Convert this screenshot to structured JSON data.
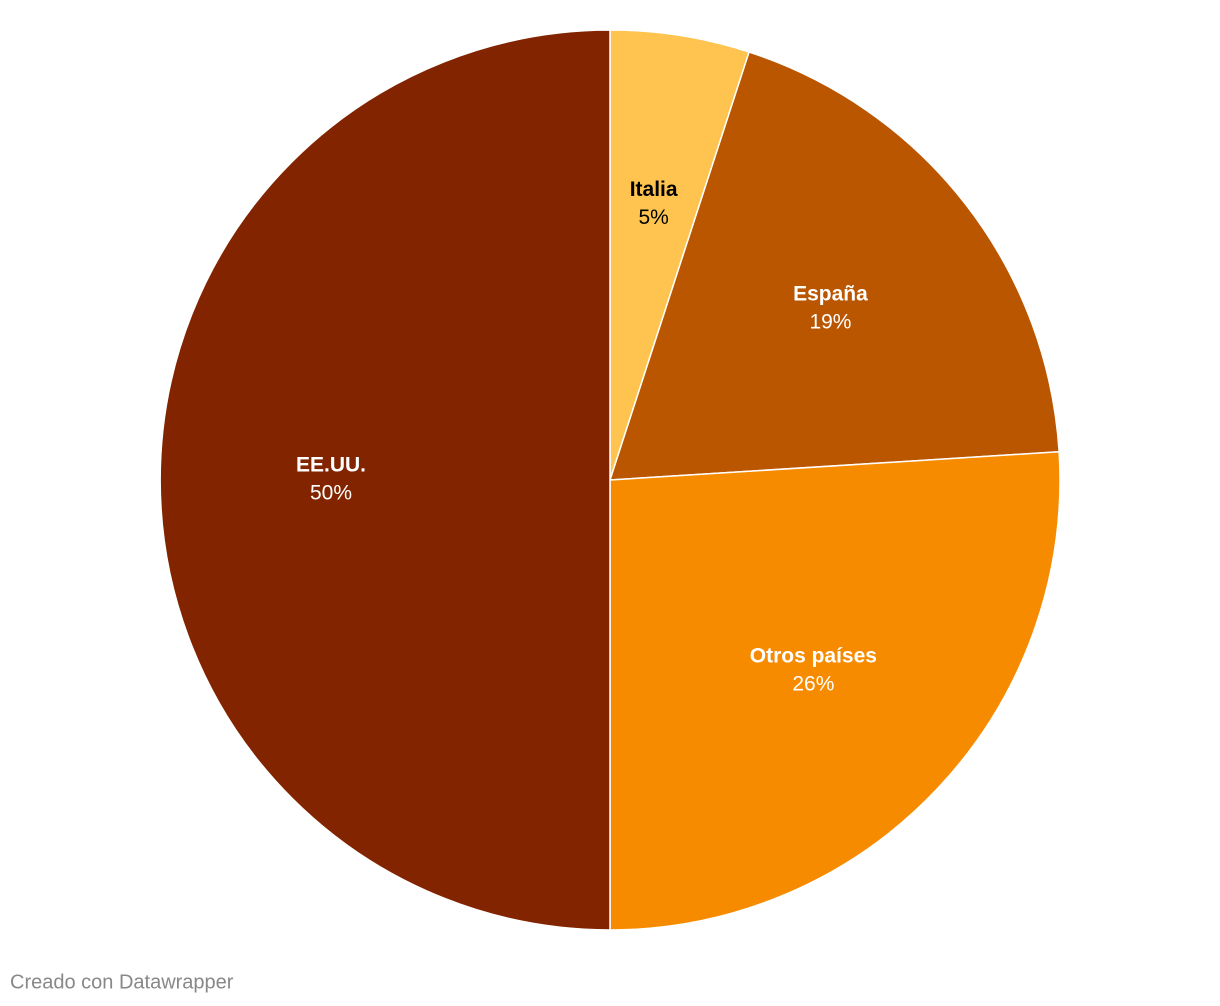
{
  "chart_data": {
    "type": "pie",
    "categories": [
      "Italia",
      "España",
      "Otros países",
      "EE.UU."
    ],
    "values": [
      5,
      19,
      26,
      50
    ],
    "value_labels": [
      "5%",
      "19%",
      "26%",
      "50%"
    ],
    "colors": [
      "#fec44f",
      "#ba5600",
      "#f78b00",
      "#822400"
    ],
    "label_colors": [
      "#000000",
      "#ffffff",
      "#ffffff",
      "#ffffff"
    ],
    "credit": "Creado con Datawrapper"
  }
}
